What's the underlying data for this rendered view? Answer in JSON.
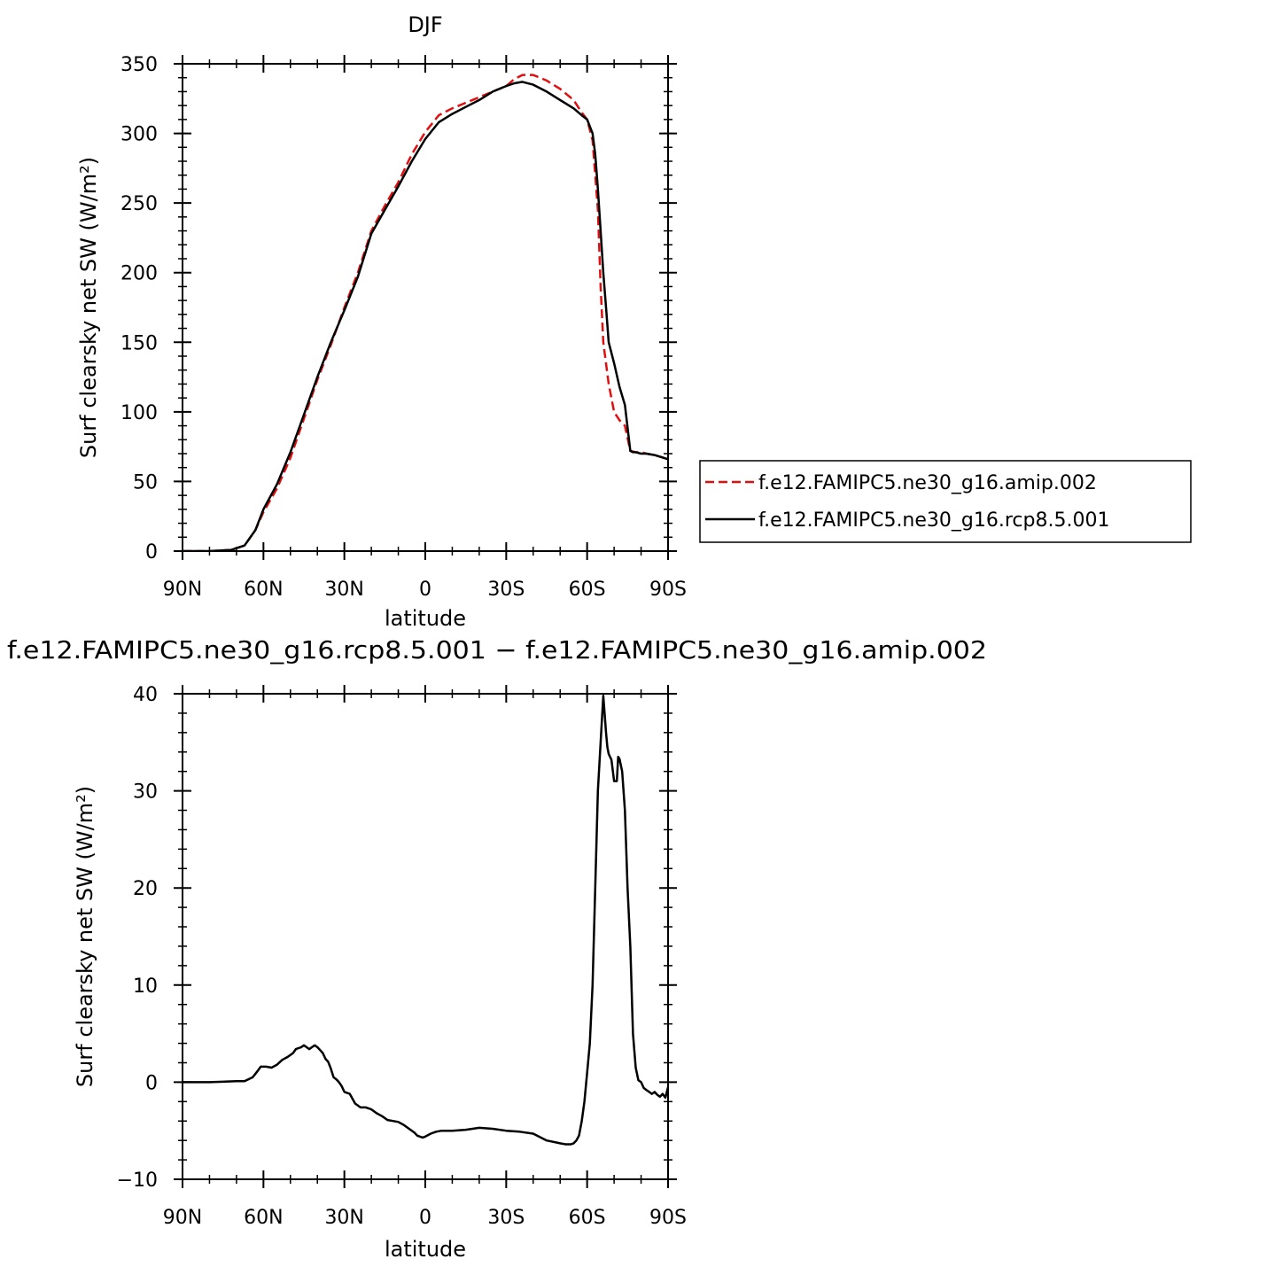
{
  "chart_data": [
    {
      "type": "line",
      "title": "DJF",
      "xlabel": "latitude",
      "ylabel": "Surf clearsky net SW (W/m²)",
      "xlim": [
        90,
        -90
      ],
      "ylim": [
        0,
        350
      ],
      "xticks": [
        90,
        60,
        30,
        0,
        -30,
        -60,
        -90
      ],
      "xticklabels": [
        "90N",
        "60N",
        "30N",
        "0",
        "30S",
        "60S",
        "90S"
      ],
      "yticks": [
        0,
        50,
        100,
        150,
        200,
        250,
        300,
        350
      ],
      "yticklabels": [
        "0",
        "50",
        "100",
        "150",
        "200",
        "250",
        "300",
        "350"
      ],
      "legend_position": "outside-right",
      "series": [
        {
          "name": "f.e12.FAMIPC5.ne30_g16.amip.002",
          "color": "#e01010",
          "dash": "dashed",
          "x": [
            90,
            80,
            72,
            67,
            63,
            60,
            55,
            50,
            45,
            40,
            35,
            30,
            25,
            20,
            15,
            10,
            5,
            0,
            -5,
            -10,
            -15,
            -20,
            -25,
            -30,
            -33,
            -36,
            -40,
            -45,
            -50,
            -55,
            -58,
            -60,
            -62,
            -64,
            -65,
            -66,
            -68,
            -70,
            -72,
            -74,
            -76,
            -78,
            -80,
            -82,
            -85,
            -90
          ],
          "y": [
            0,
            0,
            0.8,
            4,
            15,
            28,
            45,
            67,
            95,
            123,
            148,
            175,
            200,
            230,
            248,
            265,
            285,
            301,
            313,
            318,
            322,
            326,
            330,
            334,
            339,
            342,
            342,
            338,
            332,
            324,
            315,
            310,
            295,
            245,
            190,
            150,
            120,
            100,
            94,
            90,
            72,
            71,
            71,
            70,
            69,
            66
          ]
        },
        {
          "name": "f.e12.FAMIPC5.ne30_g16.rcp8.5.001",
          "color": "#000000",
          "dash": "solid",
          "x": [
            90,
            80,
            72,
            67,
            63,
            60,
            55,
            50,
            45,
            40,
            35,
            30,
            25,
            20,
            15,
            10,
            5,
            0,
            -5,
            -10,
            -15,
            -20,
            -25,
            -30,
            -33,
            -36,
            -40,
            -45,
            -50,
            -55,
            -58,
            -60,
            -62,
            -63,
            -64,
            -65,
            -66,
            -67,
            -68,
            -70,
            -72,
            -74,
            -76,
            -77,
            -78,
            -80,
            -82,
            -85,
            -90
          ],
          "y": [
            0,
            0,
            0.8,
            4,
            15,
            30,
            48,
            71,
            98,
            125,
            150,
            173,
            197,
            228,
            245,
            262,
            280,
            296,
            308,
            314,
            319,
            324,
            330,
            334,
            336,
            337,
            335,
            330,
            324,
            318,
            313,
            310,
            300,
            285,
            260,
            230,
            200,
            175,
            150,
            135,
            118,
            105,
            72,
            71,
            71,
            70,
            70,
            69,
            66
          ]
        }
      ]
    },
    {
      "type": "line",
      "title": "f.e12.FAMIPC5.ne30_g16.rcp8.5.001 − f.e12.FAMIPC5.ne30_g16.amip.002",
      "xlabel": "latitude",
      "ylabel": "Surf clearsky net SW (W/m²)",
      "xlim": [
        90,
        -90
      ],
      "ylim": [
        -10,
        40
      ],
      "xticks": [
        90,
        60,
        30,
        0,
        -30,
        -60,
        -90
      ],
      "xticklabels": [
        "90N",
        "60N",
        "30N",
        "0",
        "30S",
        "60S",
        "90S"
      ],
      "yticks": [
        -10,
        0,
        10,
        20,
        30,
        40
      ],
      "yticklabels": [
        "−10",
        "0",
        "10",
        "20",
        "30",
        "40"
      ],
      "series": [
        {
          "color": "#000000",
          "x": [
            90,
            80,
            70,
            67,
            64,
            62,
            61,
            59,
            57,
            55,
            53,
            51,
            49,
            48,
            47,
            46,
            45,
            44,
            43,
            42,
            41,
            40,
            39,
            38,
            37,
            36,
            35,
            34,
            33,
            32,
            31,
            30,
            28,
            26,
            24,
            22,
            20,
            18,
            16,
            14,
            12,
            10,
            8,
            6,
            4,
            3,
            2,
            1,
            0,
            -2,
            -4,
            -6,
            -10,
            -15,
            -20,
            -25,
            -30,
            -35,
            -40,
            -45,
            -50,
            -52,
            -54,
            -55,
            -56,
            -57,
            -58,
            -59,
            -60,
            -61,
            -62,
            -63,
            -64,
            -65,
            -66,
            -67,
            -67.5,
            -68,
            -69,
            -70,
            -71,
            -71.5,
            -72,
            -73,
            -74,
            -75,
            -76,
            -77,
            -78,
            -79,
            -80,
            -81,
            -82,
            -83,
            -84,
            -85,
            -86,
            -87,
            -88,
            -89,
            -90
          ],
          "y": [
            0,
            0,
            0.1,
            0.1,
            0.5,
            1.2,
            1.6,
            1.6,
            1.5,
            1.8,
            2.3,
            2.6,
            3.0,
            3.4,
            3.5,
            3.6,
            3.8,
            3.6,
            3.4,
            3.6,
            3.8,
            3.6,
            3.3,
            3.0,
            2.4,
            2.1,
            1.4,
            0.5,
            0.3,
            0.0,
            -0.4,
            -1.0,
            -1.2,
            -2.2,
            -2.6,
            -2.6,
            -2.8,
            -3.2,
            -3.5,
            -3.9,
            -4.0,
            -4.1,
            -4.4,
            -4.8,
            -5.2,
            -5.5,
            -5.6,
            -5.7,
            -5.6,
            -5.3,
            -5.1,
            -5.0,
            -5.0,
            -4.9,
            -4.7,
            -4.8,
            -5.0,
            -5.1,
            -5.3,
            -6.0,
            -6.3,
            -6.4,
            -6.4,
            -6.3,
            -6.0,
            -5.5,
            -4.0,
            -2.0,
            1.0,
            4.0,
            10.0,
            20.0,
            30.0,
            35.0,
            39.8,
            36.0,
            34.5,
            33.8,
            33.2,
            31.0,
            31.0,
            33.5,
            33.3,
            32.0,
            28.0,
            20.0,
            14.0,
            5.0,
            1.5,
            0.2,
            0.0,
            -0.6,
            -0.8,
            -1.0,
            -1.2,
            -1.0,
            -1.3,
            -1.5,
            -1.2,
            -1.6,
            -0.5
          ]
        }
      ]
    }
  ]
}
